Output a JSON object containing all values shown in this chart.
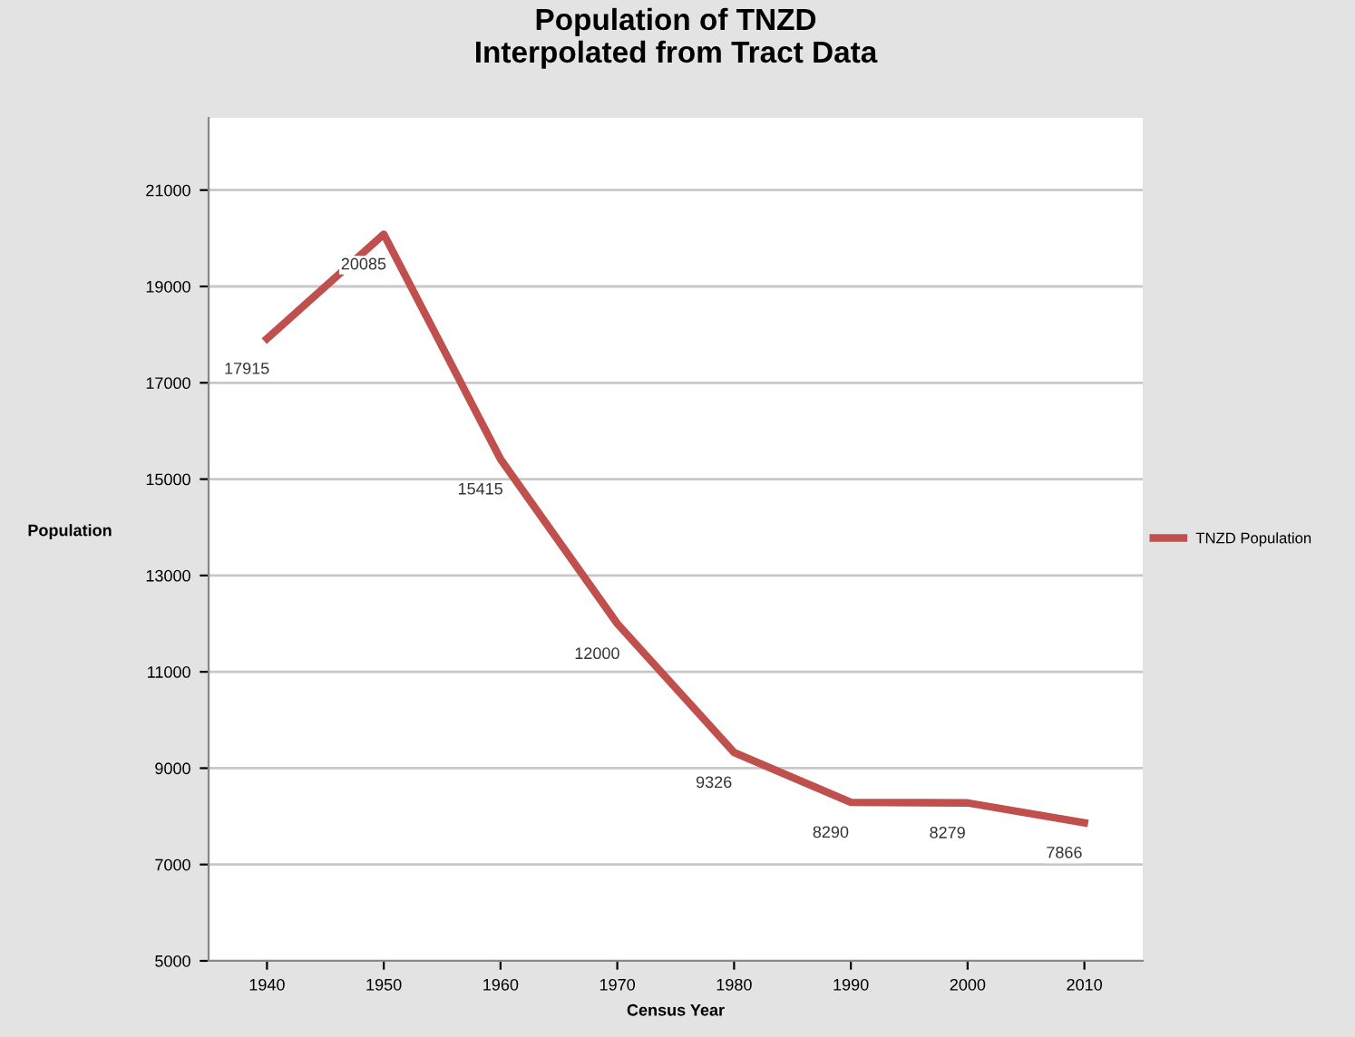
{
  "chart_data": {
    "type": "line",
    "title": "Population of TNZD\nInterpolated from Tract Data",
    "xlabel": "Census Year",
    "ylabel": "Population",
    "categories": [
      "1940",
      "1950",
      "1960",
      "1970",
      "1980",
      "1990",
      "2000",
      "2010"
    ],
    "series": [
      {
        "name": "TNZD Population",
        "color": "#c0504d",
        "values": [
          17915,
          20085,
          15415,
          12000,
          9326,
          8290,
          8279,
          7866
        ]
      }
    ],
    "ylim": [
      5000,
      22500
    ],
    "yticks": [
      5000,
      7000,
      9000,
      11000,
      13000,
      15000,
      17000,
      19000,
      21000
    ],
    "grid": "y",
    "legend": "right",
    "data_labels": true,
    "marker": "none",
    "line_style": "solid"
  }
}
